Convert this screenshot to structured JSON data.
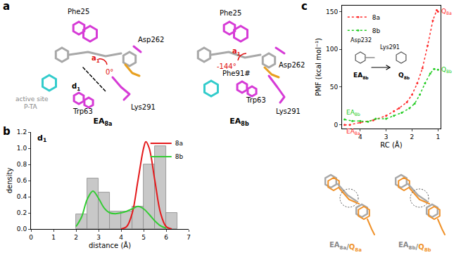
{
  "panel_labels": [
    "a",
    "b",
    "c"
  ],
  "panel_a": {
    "key": [
      "active site",
      "P-TA"
    ],
    "angle_label": {
      "text": "a",
      "sub": "1"
    },
    "distance_label": {
      "text": "d",
      "sub": "1"
    },
    "structures": [
      {
        "name": {
          "text": "EA",
          "sub": "8a"
        },
        "angle": "0°",
        "residues": [
          "Phe25",
          "Asp262",
          "Trp63",
          "Lys291"
        ]
      },
      {
        "name": {
          "text": "EA",
          "sub": "8b"
        },
        "angle": "-144°",
        "residues": [
          "Phe25",
          "Asp262",
          "Phe91#",
          "Trp63",
          "Lys291"
        ]
      }
    ]
  },
  "chart_data": [
    {
      "type": "histogram",
      "title": {
        "text": "d",
        "sub": "1"
      },
      "xlabel": "distance (Å)",
      "ylabel": "density",
      "bins": [
        2.0,
        2.5,
        3.0,
        3.5,
        4.0,
        4.5,
        5.0,
        5.5,
        6.0,
        6.5
      ],
      "counts": [
        0.18,
        0.63,
        0.45,
        0.22,
        0.22,
        0.28,
        0.8,
        1.03,
        0.2
      ],
      "color": "#c8c8c8",
      "series": [
        {
          "name": "8a",
          "type": "line",
          "color": "#e41a1c",
          "x": [
            4.0,
            4.25,
            4.5,
            4.75,
            5.0,
            5.1,
            5.25,
            5.5,
            5.75,
            6.0,
            6.25
          ],
          "values": [
            0.0,
            0.03,
            0.2,
            0.6,
            1.0,
            1.08,
            1.0,
            0.6,
            0.2,
            0.03,
            0.0
          ]
        },
        {
          "name": "8b",
          "type": "line",
          "color": "#33cc33",
          "x": [
            2.0,
            2.25,
            2.5,
            2.75,
            3.0,
            3.25,
            3.5,
            3.75,
            4.0,
            4.25,
            4.5,
            4.75,
            5.0,
            5.25,
            5.5,
            5.75,
            6.0
          ],
          "values": [
            0.03,
            0.15,
            0.37,
            0.47,
            0.38,
            0.26,
            0.2,
            0.19,
            0.2,
            0.22,
            0.25,
            0.28,
            0.25,
            0.18,
            0.1,
            0.04,
            0.01
          ]
        }
      ],
      "xlim": [
        0,
        7
      ],
      "xticks": [
        0,
        1,
        2,
        3,
        4,
        5,
        6,
        7
      ],
      "ylim": [
        0,
        1.2
      ],
      "yticks": [
        {
          "value": 0,
          "label": "0.0"
        },
        {
          "value": 0.2,
          "label": "0.2"
        },
        {
          "value": 0.4,
          "label": "0.4"
        },
        {
          "value": 0.6,
          "label": "0.6"
        },
        {
          "value": 0.8,
          "label": "0.8"
        },
        {
          "value": 1.0,
          "label": "1.0"
        },
        {
          "value": 1.2,
          "label": "1.2"
        }
      ],
      "legend": "top right",
      "grid": false
    },
    {
      "type": "line",
      "xlabel": "RC (Å)",
      "ylabel": "PMF (kcal mol⁻¹)",
      "series": [
        {
          "name": "8a",
          "color": "#ff2a2a",
          "start_label": {
            "text": "EA",
            "sub": "8a"
          },
          "end_label": {
            "text": "Q",
            "sub": "8a"
          },
          "x": [
            4.6,
            4.4,
            4.0,
            3.5,
            3.0,
            2.7,
            2.5,
            2.2,
            2.0,
            1.8,
            1.6,
            1.4,
            1.2,
            1.05,
            1.0
          ],
          "values": [
            0,
            0,
            3,
            6,
            12,
            18,
            22,
            30,
            40,
            55,
            75,
            105,
            138,
            152,
            150
          ]
        },
        {
          "name": "8b",
          "color": "#22cc22",
          "start_label": {
            "text": "EA",
            "sub": "8b"
          },
          "end_label": {
            "text": "Q",
            "sub": "8b"
          },
          "x": [
            4.6,
            4.3,
            4.0,
            3.7,
            3.4,
            3.0,
            2.7,
            2.4,
            2.1,
            1.9,
            1.7,
            1.5,
            1.3,
            1.15,
            1.0
          ],
          "values": [
            7,
            5,
            5,
            4,
            8,
            8,
            12,
            16,
            22,
            28,
            40,
            55,
            68,
            74,
            73
          ]
        }
      ],
      "xlim": [
        4.7,
        0.9
      ],
      "xticks": [
        4,
        3,
        2,
        1
      ],
      "ylim": [
        -5,
        158
      ],
      "yticks": [
        0,
        50,
        100,
        150
      ],
      "legend": "top left",
      "grid": false
    }
  ],
  "panel_c_scheme": {
    "residues": [
      "Asp232",
      "Lys291"
    ],
    "from": {
      "text": "EA",
      "sub": "8b"
    },
    "to": {
      "text": "Q",
      "sub": "8b"
    }
  },
  "panel_c_overlays": [
    {
      "from": {
        "text": "EA",
        "sub": "8a"
      },
      "separator": "/",
      "to": {
        "text": "Q",
        "sub": "8a"
      }
    },
    {
      "from": {
        "text": "EA",
        "sub": "8b"
      },
      "separator": "/",
      "to": {
        "text": "Q",
        "sub": "8b"
      }
    }
  ]
}
